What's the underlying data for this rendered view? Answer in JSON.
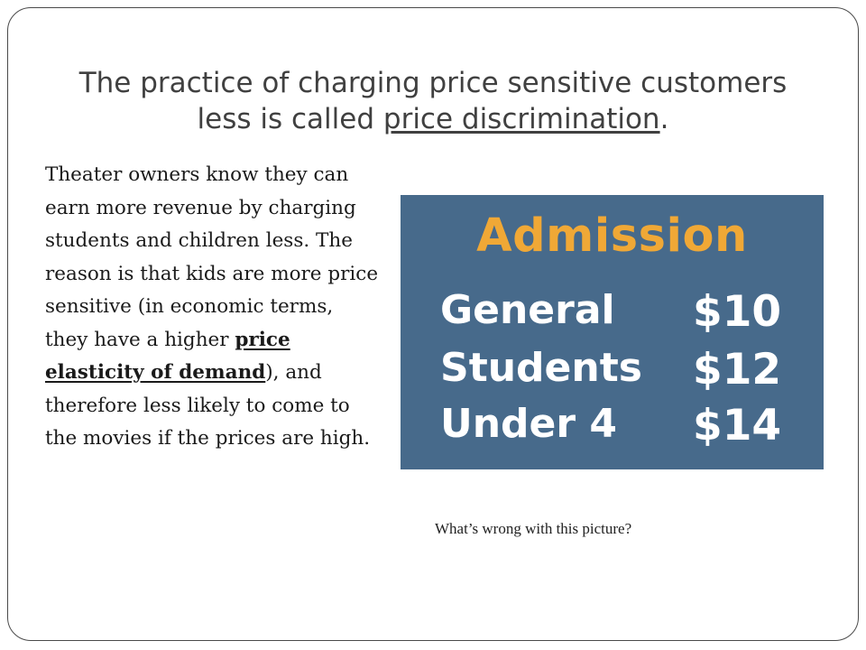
{
  "title": {
    "line1": "The practice of charging price sensitive customers",
    "line2_before": "less is called ",
    "line2_term": "price discrimination",
    "line2_after": "."
  },
  "body": {
    "before": "Theater owners know they can earn more revenue by charging students and children less.  The reason is that kids are more price sensitive (in economic terms, they have a higher ",
    "term": "price elasticity of demand",
    "after": "), and therefore less likely to come to the movies if the prices are high."
  },
  "sign": {
    "title": "Admission",
    "rows": [
      {
        "category": "General",
        "price": "$10"
      },
      {
        "category": "Students",
        "price": "$12"
      },
      {
        "category": "Under 4",
        "price": "$14"
      }
    ],
    "background_color": "#476a8b",
    "title_color": "#f0a836"
  },
  "caption": "What’s wrong with this picture?"
}
